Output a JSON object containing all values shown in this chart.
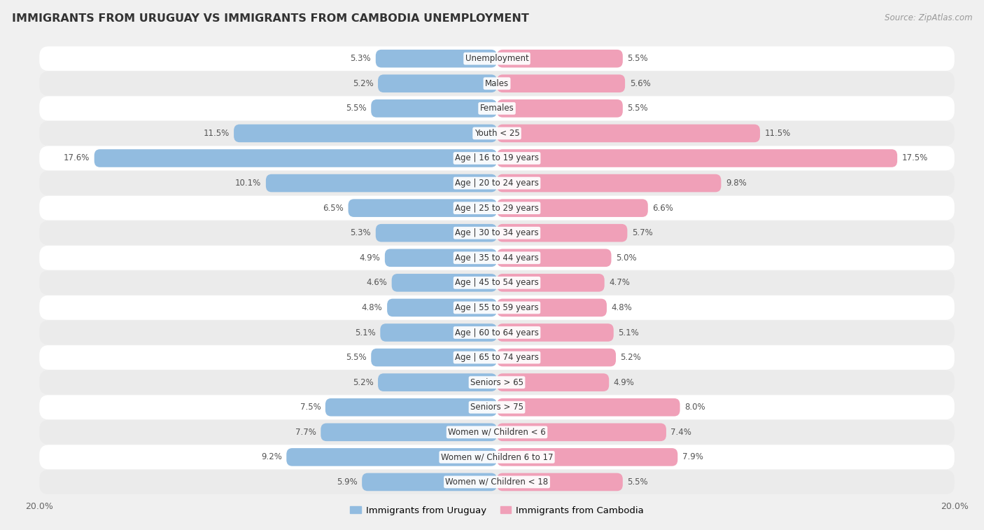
{
  "title": "IMMIGRANTS FROM URUGUAY VS IMMIGRANTS FROM CAMBODIA UNEMPLOYMENT",
  "source": "Source: ZipAtlas.com",
  "categories": [
    "Unemployment",
    "Males",
    "Females",
    "Youth < 25",
    "Age | 16 to 19 years",
    "Age | 20 to 24 years",
    "Age | 25 to 29 years",
    "Age | 30 to 34 years",
    "Age | 35 to 44 years",
    "Age | 45 to 54 years",
    "Age | 55 to 59 years",
    "Age | 60 to 64 years",
    "Age | 65 to 74 years",
    "Seniors > 65",
    "Seniors > 75",
    "Women w/ Children < 6",
    "Women w/ Children 6 to 17",
    "Women w/ Children < 18"
  ],
  "uruguay_values": [
    5.3,
    5.2,
    5.5,
    11.5,
    17.6,
    10.1,
    6.5,
    5.3,
    4.9,
    4.6,
    4.8,
    5.1,
    5.5,
    5.2,
    7.5,
    7.7,
    9.2,
    5.9
  ],
  "cambodia_values": [
    5.5,
    5.6,
    5.5,
    11.5,
    17.5,
    9.8,
    6.6,
    5.7,
    5.0,
    4.7,
    4.8,
    5.1,
    5.2,
    4.9,
    8.0,
    7.4,
    7.9,
    5.5
  ],
  "uruguay_color": "#92bce0",
  "cambodia_color": "#f0a0b8",
  "row_color_even": "#f5f5f5",
  "row_color_odd": "#e8e8e8",
  "background_color": "#f0f0f0",
  "text_color": "#555555",
  "axis_limit": 20.0,
  "legend_uruguay": "Immigrants from Uruguay",
  "legend_cambodia": "Immigrants from Cambodia"
}
